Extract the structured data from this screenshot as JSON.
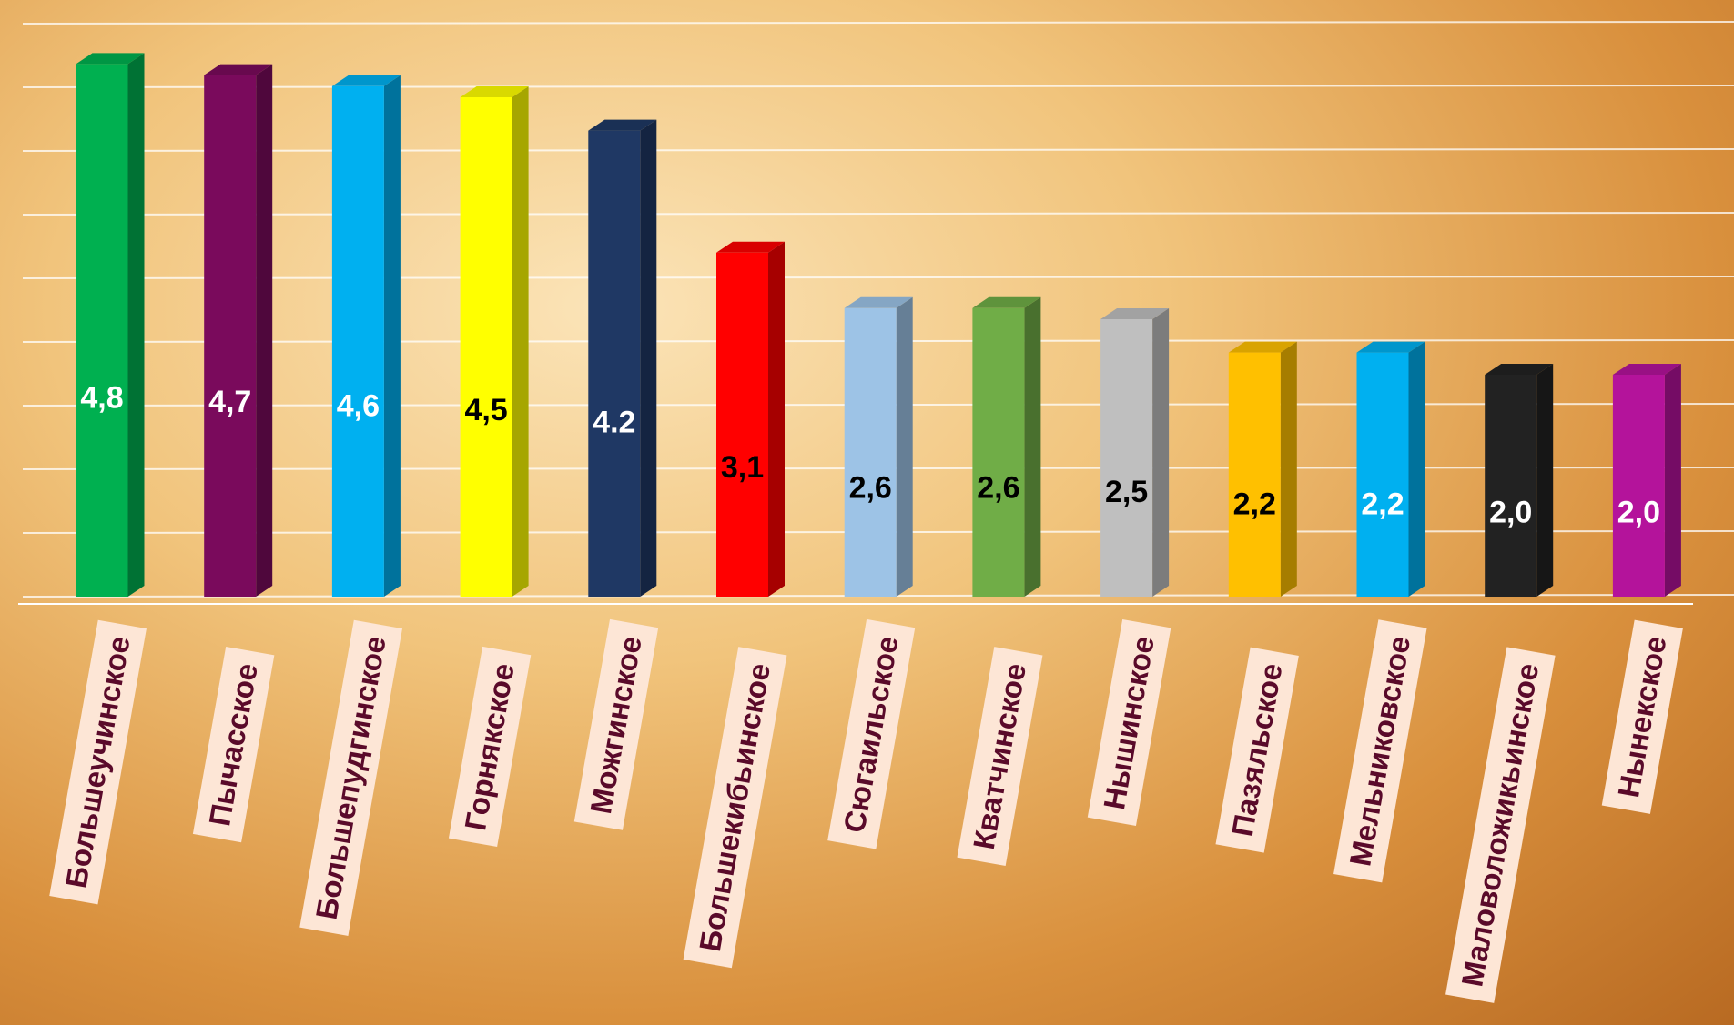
{
  "chart_data": {
    "type": "bar3d",
    "categories": [
      "Большеучинское",
      "Пычасское",
      "Большепудгинское",
      "Горнякское",
      "Можгинское",
      "Большекибьинское",
      "Сюгаильское",
      "Кватчинское",
      "Нышинское",
      "Пазяльское",
      "Мельниковское",
      "Маловоложикьинское",
      "Нынекское"
    ],
    "values": [
      4.8,
      4.7,
      4.6,
      4.5,
      4.2,
      3.1,
      2.6,
      2.6,
      2.5,
      2.2,
      2.2,
      2.0,
      2.0
    ],
    "value_labels": [
      "4,8",
      "4,7",
      "4,6",
      "4,5",
      "4.2",
      "3,1",
      "2,6",
      "2,6",
      "2,5",
      "2,2",
      "2,2",
      "2,0",
      "2,0"
    ],
    "colors": [
      "#00b050",
      "#7a0a5c",
      "#00b0f0",
      "#ffff00",
      "#1f3864",
      "#ff0000",
      "#9dc3e6",
      "#70ad47",
      "#bfbfbf",
      "#ffc000",
      "#00b0f0",
      "#222222",
      "#b4139b"
    ],
    "ylim": [
      0,
      5
    ]
  }
}
